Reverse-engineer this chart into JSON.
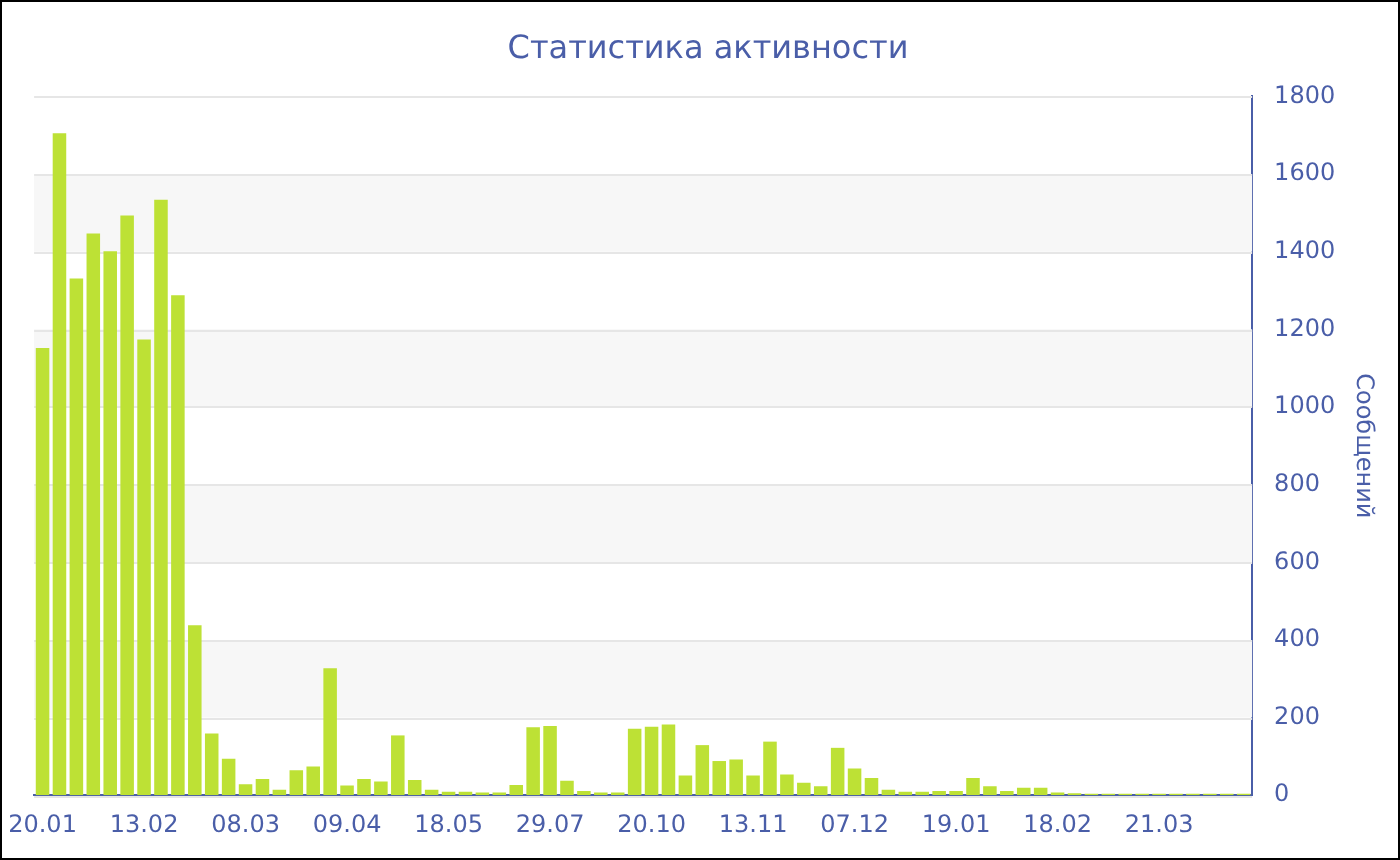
{
  "chart_data": {
    "type": "bar",
    "title": "Статистика активности",
    "ylabel": "Сообщений",
    "categories": [
      "20.01",
      null,
      null,
      null,
      null,
      null,
      "13.02",
      null,
      null,
      null,
      null,
      null,
      "08.03",
      null,
      null,
      null,
      null,
      null,
      "09.04",
      null,
      null,
      null,
      null,
      null,
      "18.05",
      null,
      null,
      null,
      null,
      null,
      "29.07",
      null,
      null,
      null,
      null,
      null,
      "20.10",
      null,
      null,
      null,
      null,
      null,
      "13.11",
      null,
      null,
      null,
      null,
      null,
      "07.12",
      null,
      null,
      null,
      null,
      null,
      "19.01",
      null,
      null,
      null,
      null,
      null,
      "18.02",
      null,
      null,
      null,
      null,
      null,
      "21.03",
      null,
      null,
      null,
      null,
      null
    ],
    "values": [
      1152,
      1705,
      1331,
      1447,
      1401,
      1493,
      1174,
      1534,
      1288,
      438,
      159,
      94,
      28,
      42,
      14,
      64,
      74,
      327,
      25,
      42,
      35,
      154,
      39,
      14,
      9,
      9,
      7,
      7,
      26,
      175,
      178,
      37,
      11,
      7,
      7,
      171,
      176,
      182,
      51,
      129,
      88,
      92,
      51,
      138,
      53,
      32,
      23,
      122,
      69,
      44,
      14,
      9,
      9,
      11,
      11,
      44,
      23,
      11,
      19,
      19,
      7,
      5,
      4,
      4,
      4,
      4,
      4,
      4,
      4,
      4,
      4,
      4
    ],
    "color": "#bde135",
    "ylim": [
      0,
      1800
    ],
    "yticks": [
      0,
      200,
      400,
      600,
      800,
      1000,
      1200,
      1400,
      1600,
      1800
    ],
    "grid": "y"
  }
}
